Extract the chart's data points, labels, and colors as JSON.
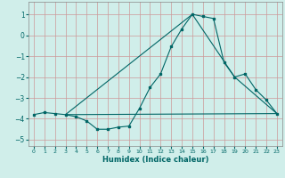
{
  "title": "",
  "xlabel": "Humidex (Indice chaleur)",
  "ylabel": "",
  "background_color": "#d0eeea",
  "grid_color": "#cc9999",
  "line_color": "#006666",
  "xlim": [
    -0.5,
    23.5
  ],
  "ylim": [
    -5.3,
    1.6
  ],
  "yticks": [
    1,
    0,
    -1,
    -2,
    -3,
    -4,
    -5
  ],
  "xticks": [
    0,
    1,
    2,
    3,
    4,
    5,
    6,
    7,
    8,
    9,
    10,
    11,
    12,
    13,
    14,
    15,
    16,
    17,
    18,
    19,
    20,
    21,
    22,
    23
  ],
  "line1_x": [
    0,
    1,
    2,
    3,
    4,
    5,
    6,
    7,
    8,
    9,
    10,
    11,
    12,
    13,
    14,
    15,
    16,
    17,
    18,
    19,
    20,
    21,
    22,
    23
  ],
  "line1_y": [
    -3.8,
    -3.7,
    -3.75,
    -3.8,
    -3.9,
    -4.1,
    -4.5,
    -4.5,
    -4.4,
    -4.35,
    -3.5,
    -2.5,
    -1.85,
    -0.55,
    0.3,
    1.0,
    0.9,
    0.8,
    -1.3,
    -2.0,
    -1.85,
    -2.6,
    -3.1,
    -3.75
  ],
  "line2_x": [
    3,
    23
  ],
  "line2_y": [
    -3.8,
    -3.75
  ],
  "line3_x": [
    3,
    15,
    19,
    23
  ],
  "line3_y": [
    -3.8,
    1.0,
    -2.0,
    -3.75
  ]
}
